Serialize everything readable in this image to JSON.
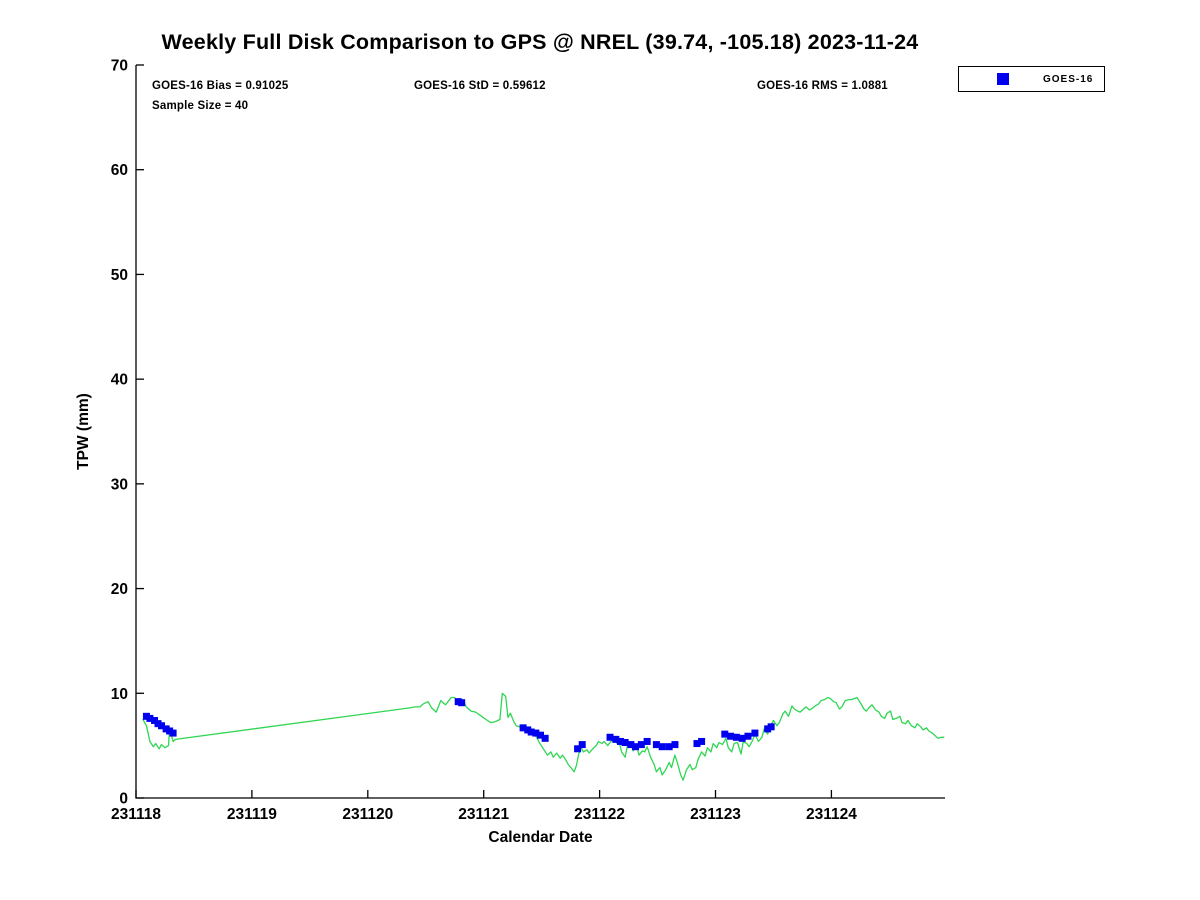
{
  "title": "Weekly Full Disk Comparison to GPS @ NREL (39.74, -105.18) 2023-11-24",
  "stats": {
    "bias": "GOES-16 Bias = 0.91025",
    "std": "GOES-16 StD = 0.59612",
    "rms": "GOES-16 RMS = 1.0881",
    "sample_size": "Sample Size = 40"
  },
  "legend": {
    "items": [
      {
        "label": "GOES-16",
        "marker": "filled-square",
        "color": "#0000ee"
      }
    ]
  },
  "colors": {
    "gps_line": "#2fd653",
    "goes16_marker": "#0000ee",
    "axis": "#000000",
    "background": "#ffffff"
  },
  "chart_data": {
    "type": "line+scatter",
    "title": "Weekly Full Disk Comparison to GPS @ NREL (39.74, -105.18) 2023-11-24",
    "xlabel": "Calendar Date",
    "ylabel": "TPW (mm)",
    "x_base_date": "231118",
    "x_tick_labels": [
      "231118",
      "231119",
      "231120",
      "231121",
      "231122",
      "231123",
      "231124"
    ],
    "x_tick_days": [
      0,
      1,
      2,
      3,
      4,
      5,
      6
    ],
    "xlim_days": [
      0,
      6.98
    ],
    "y_ticks": [
      0,
      10,
      20,
      30,
      40,
      50,
      60,
      70
    ],
    "ylim": [
      0,
      70
    ],
    "grid": false,
    "legend_position": "top-right-outside",
    "series": [
      {
        "name": "GPS",
        "type": "line",
        "color": "#2fd653",
        "points": [
          [
            0.06,
            7.5
          ],
          [
            0.09,
            6.9
          ],
          [
            0.12,
            5.4
          ],
          [
            0.15,
            4.9
          ],
          [
            0.17,
            5.2
          ],
          [
            0.2,
            4.7
          ],
          [
            0.22,
            5.1
          ],
          [
            0.25,
            4.8
          ],
          [
            0.28,
            5.0
          ],
          [
            0.29,
            6.6
          ],
          [
            0.32,
            5.4
          ],
          [
            0.34,
            5.6
          ],
          [
            2.36,
            8.6
          ],
          [
            2.41,
            8.7
          ],
          [
            2.45,
            8.7
          ],
          [
            2.48,
            9.0
          ],
          [
            2.52,
            9.2
          ],
          [
            2.55,
            8.6
          ],
          [
            2.59,
            8.2
          ],
          [
            2.63,
            9.3
          ],
          [
            2.67,
            8.9
          ],
          [
            2.72,
            9.6
          ],
          [
            2.75,
            9.6
          ],
          [
            2.78,
            9.1
          ],
          [
            2.82,
            9.4
          ],
          [
            2.85,
            8.7
          ],
          [
            2.89,
            8.3
          ],
          [
            2.93,
            8.2
          ],
          [
            2.97,
            7.9
          ],
          [
            3.02,
            7.5
          ],
          [
            3.06,
            7.2
          ],
          [
            3.1,
            7.3
          ],
          [
            3.14,
            7.5
          ],
          [
            3.16,
            10.0
          ],
          [
            3.19,
            9.7
          ],
          [
            3.21,
            7.7
          ],
          [
            3.23,
            8.1
          ],
          [
            3.26,
            7.3
          ],
          [
            3.28,
            6.9
          ],
          [
            3.31,
            6.8
          ],
          [
            3.34,
            6.6
          ],
          [
            3.38,
            6.4
          ],
          [
            3.41,
            6.2
          ],
          [
            3.45,
            5.9
          ],
          [
            3.48,
            5.3
          ],
          [
            3.52,
            4.6
          ],
          [
            3.55,
            4.1
          ],
          [
            3.58,
            4.4
          ],
          [
            3.6,
            3.9
          ],
          [
            3.63,
            4.3
          ],
          [
            3.66,
            3.8
          ],
          [
            3.68,
            4.1
          ],
          [
            3.71,
            3.6
          ],
          [
            3.73,
            3.2
          ],
          [
            3.76,
            2.8
          ],
          [
            3.78,
            2.5
          ],
          [
            3.8,
            3.1
          ],
          [
            3.82,
            4.2
          ],
          [
            3.84,
            4.8
          ],
          [
            3.86,
            4.4
          ],
          [
            3.89,
            4.6
          ],
          [
            3.91,
            4.3
          ],
          [
            3.94,
            4.7
          ],
          [
            3.97,
            5.0
          ],
          [
            3.99,
            5.4
          ],
          [
            4.02,
            5.2
          ],
          [
            4.04,
            5.4
          ],
          [
            4.07,
            5.0
          ],
          [
            4.09,
            5.3
          ],
          [
            4.12,
            5.6
          ],
          [
            4.15,
            5.2
          ],
          [
            4.17,
            5.3
          ],
          [
            4.19,
            4.4
          ],
          [
            4.22,
            3.9
          ],
          [
            4.24,
            5.0
          ],
          [
            4.27,
            5.3
          ],
          [
            4.29,
            4.5
          ],
          [
            4.32,
            5.0
          ],
          [
            4.34,
            4.1
          ],
          [
            4.37,
            4.5
          ],
          [
            4.39,
            4.4
          ],
          [
            4.41,
            4.9
          ],
          [
            4.44,
            3.9
          ],
          [
            4.47,
            3.2
          ],
          [
            4.49,
            2.5
          ],
          [
            4.52,
            2.9
          ],
          [
            4.54,
            2.2
          ],
          [
            4.57,
            2.7
          ],
          [
            4.6,
            3.4
          ],
          [
            4.62,
            2.9
          ],
          [
            4.65,
            4.1
          ],
          [
            4.67,
            3.4
          ],
          [
            4.7,
            2.2
          ],
          [
            4.72,
            1.7
          ],
          [
            4.75,
            2.7
          ],
          [
            4.78,
            3.2
          ],
          [
            4.8,
            2.7
          ],
          [
            4.83,
            2.9
          ],
          [
            4.85,
            3.7
          ],
          [
            4.88,
            4.4
          ],
          [
            4.91,
            4.0
          ],
          [
            4.93,
            4.8
          ],
          [
            4.96,
            4.4
          ],
          [
            4.98,
            5.2
          ],
          [
            5.01,
            4.8
          ],
          [
            5.03,
            5.3
          ],
          [
            5.06,
            5.1
          ],
          [
            5.09,
            5.7
          ],
          [
            5.11,
            4.8
          ],
          [
            5.14,
            4.4
          ],
          [
            5.16,
            5.2
          ],
          [
            5.19,
            5.3
          ],
          [
            5.22,
            4.2
          ],
          [
            5.24,
            5.4
          ],
          [
            5.27,
            5.2
          ],
          [
            5.29,
            4.9
          ],
          [
            5.32,
            5.5
          ],
          [
            5.34,
            6.1
          ],
          [
            5.37,
            5.4
          ],
          [
            5.4,
            5.8
          ],
          [
            5.42,
            6.6
          ],
          [
            5.45,
            6.1
          ],
          [
            5.47,
            6.8
          ],
          [
            5.5,
            7.4
          ],
          [
            5.53,
            6.9
          ],
          [
            5.55,
            7.2
          ],
          [
            5.58,
            8.0
          ],
          [
            5.6,
            8.3
          ],
          [
            5.63,
            7.8
          ],
          [
            5.66,
            8.8
          ],
          [
            5.68,
            8.5
          ],
          [
            5.71,
            8.3
          ],
          [
            5.73,
            8.2
          ],
          [
            5.76,
            8.5
          ],
          [
            5.78,
            8.7
          ],
          [
            5.81,
            8.4
          ],
          [
            5.84,
            8.6
          ],
          [
            5.86,
            8.8
          ],
          [
            5.89,
            9.0
          ],
          [
            5.91,
            9.3
          ],
          [
            5.94,
            9.4
          ],
          [
            5.97,
            9.6
          ],
          [
            5.99,
            9.5
          ],
          [
            6.02,
            9.2
          ],
          [
            6.04,
            9.1
          ],
          [
            6.07,
            8.5
          ],
          [
            6.09,
            8.7
          ],
          [
            6.12,
            9.3
          ],
          [
            6.15,
            9.4
          ],
          [
            6.17,
            9.4
          ],
          [
            6.2,
            9.5
          ],
          [
            6.22,
            9.6
          ],
          [
            6.25,
            9.1
          ],
          [
            6.28,
            8.5
          ],
          [
            6.3,
            8.3
          ],
          [
            6.33,
            8.7
          ],
          [
            6.35,
            8.9
          ],
          [
            6.38,
            8.4
          ],
          [
            6.41,
            8.2
          ],
          [
            6.43,
            7.8
          ],
          [
            6.46,
            7.6
          ],
          [
            6.48,
            8.1
          ],
          [
            6.51,
            8.3
          ],
          [
            6.53,
            7.5
          ],
          [
            6.56,
            7.6
          ],
          [
            6.59,
            7.8
          ],
          [
            6.61,
            7.2
          ],
          [
            6.64,
            7.1
          ],
          [
            6.66,
            7.4
          ],
          [
            6.69,
            6.9
          ],
          [
            6.72,
            6.7
          ],
          [
            6.74,
            7.1
          ],
          [
            6.77,
            6.8
          ],
          [
            6.79,
            6.5
          ],
          [
            6.82,
            6.7
          ],
          [
            6.84,
            6.4
          ],
          [
            6.87,
            6.2
          ],
          [
            6.9,
            5.9
          ],
          [
            6.92,
            5.7
          ],
          [
            6.95,
            5.8
          ],
          [
            6.97,
            5.8
          ]
        ]
      },
      {
        "name": "GOES-16",
        "type": "scatter",
        "marker": "square",
        "color": "#0000ee",
        "points": [
          [
            0.09,
            7.8
          ],
          [
            0.12,
            7.6
          ],
          [
            0.16,
            7.4
          ],
          [
            0.19,
            7.1
          ],
          [
            0.22,
            6.9
          ],
          [
            0.26,
            6.6
          ],
          [
            0.29,
            6.4
          ],
          [
            0.32,
            6.2
          ],
          [
            2.78,
            9.2
          ],
          [
            2.81,
            9.1
          ],
          [
            3.34,
            6.7
          ],
          [
            3.38,
            6.5
          ],
          [
            3.41,
            6.3
          ],
          [
            3.45,
            6.2
          ],
          [
            3.49,
            6.0
          ],
          [
            3.53,
            5.7
          ],
          [
            3.81,
            4.7
          ],
          [
            3.85,
            5.1
          ],
          [
            4.09,
            5.8
          ],
          [
            4.14,
            5.6
          ],
          [
            4.18,
            5.4
          ],
          [
            4.22,
            5.3
          ],
          [
            4.27,
            5.1
          ],
          [
            4.31,
            4.9
          ],
          [
            4.36,
            5.1
          ],
          [
            4.41,
            5.4
          ],
          [
            4.49,
            5.1
          ],
          [
            4.54,
            4.9
          ],
          [
            4.6,
            4.9
          ],
          [
            4.65,
            5.1
          ],
          [
            4.84,
            5.2
          ],
          [
            4.88,
            5.4
          ],
          [
            5.08,
            6.1
          ],
          [
            5.13,
            5.9
          ],
          [
            5.18,
            5.8
          ],
          [
            5.23,
            5.7
          ],
          [
            5.28,
            5.9
          ],
          [
            5.34,
            6.2
          ],
          [
            5.45,
            6.6
          ],
          [
            5.48,
            6.8
          ]
        ]
      }
    ]
  }
}
